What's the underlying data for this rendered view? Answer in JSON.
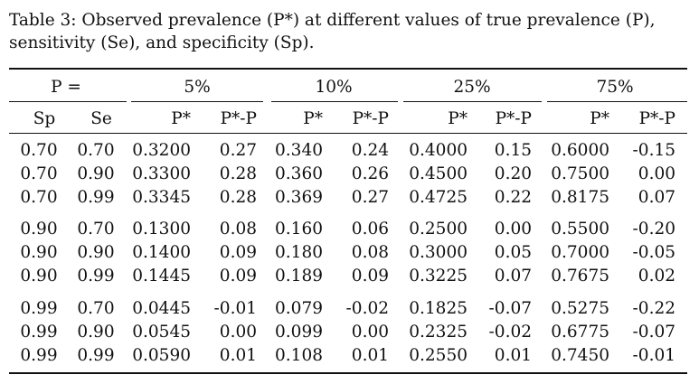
{
  "caption": {
    "line1": "Table 3:  Observed prevalence (P*) at different values of true prevalence (P),",
    "line2": "sensitivity (Se), and specificity (Sp)."
  },
  "header": {
    "p_label": "P =",
    "groups": [
      "5%",
      "10%",
      "25%",
      "75%"
    ],
    "sp": "Sp",
    "se": "Se",
    "pstar": "P*",
    "diff": "P*-P"
  },
  "rows": [
    [
      "0.70",
      "0.70",
      "0.3200",
      "0.27",
      "0.340",
      "0.24",
      "0.4000",
      "0.15",
      "0.6000",
      "-0.15"
    ],
    [
      "0.70",
      "0.90",
      "0.3300",
      "0.28",
      "0.360",
      "0.26",
      "0.4500",
      "0.20",
      "0.7500",
      "0.00"
    ],
    [
      "0.70",
      "0.99",
      "0.3345",
      "0.28",
      "0.369",
      "0.27",
      "0.4725",
      "0.22",
      "0.8175",
      "0.07"
    ],
    [
      "0.90",
      "0.70",
      "0.1300",
      "0.08",
      "0.160",
      "0.06",
      "0.2500",
      "0.00",
      "0.5500",
      "-0.20"
    ],
    [
      "0.90",
      "0.90",
      "0.1400",
      "0.09",
      "0.180",
      "0.08",
      "0.3000",
      "0.05",
      "0.7000",
      "-0.05"
    ],
    [
      "0.90",
      "0.99",
      "0.1445",
      "0.09",
      "0.189",
      "0.09",
      "0.3225",
      "0.07",
      "0.7675",
      "0.02"
    ],
    [
      "0.99",
      "0.70",
      "0.0445",
      "-0.01",
      "0.079",
      "-0.02",
      "0.1825",
      "-0.07",
      "0.5275",
      "-0.22"
    ],
    [
      "0.99",
      "0.90",
      "0.0545",
      "0.00",
      "0.099",
      "0.00",
      "0.2325",
      "-0.02",
      "0.6775",
      "-0.07"
    ],
    [
      "0.99",
      "0.99",
      "0.0590",
      "0.01",
      "0.108",
      "0.01",
      "0.2550",
      "0.01",
      "0.7450",
      "-0.01"
    ]
  ]
}
